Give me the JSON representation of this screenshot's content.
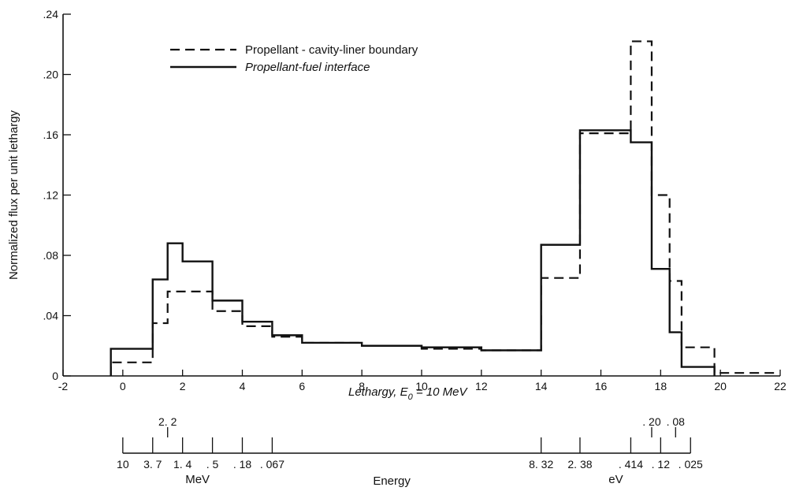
{
  "chart_data": {
    "type": "line",
    "title": "",
    "xlabel": "Lethargy, E",
    "xlabel_subscript": "0",
    "xlabel_suffix": " = 10 MeV",
    "ylabel": "Normalized flux per unit lethargy",
    "xlim": [
      -2,
      22
    ],
    "ylim": [
      0,
      0.24
    ],
    "x_ticks": [
      -2,
      0,
      2,
      4,
      6,
      8,
      10,
      12,
      14,
      16,
      18,
      20,
      22
    ],
    "x_tick_labels": [
      "-2",
      "0",
      "2",
      "4",
      "6",
      "8",
      "10",
      "12",
      "14",
      "16",
      "18",
      "20",
      "22"
    ],
    "y_ticks": [
      0,
      0.04,
      0.08,
      0.12,
      0.16,
      0.2,
      0.24
    ],
    "y_tick_labels": [
      "0",
      ".04",
      ".08",
      ".12",
      ".16",
      ".20",
      ".24"
    ],
    "grid": false,
    "legend": "top-left",
    "series": [
      {
        "name": "Propellant - cavity-liner boundary",
        "style": "dashed",
        "step": true,
        "x": [
          -0.4,
          1.0,
          1.5,
          2.0,
          3.0,
          4.0,
          5.0,
          6.0,
          7.0,
          8.0,
          9.0,
          10.0,
          11.0,
          12.0,
          14.0,
          15.3,
          17.0,
          17.7,
          18.3,
          18.7,
          19.8,
          21.8
        ],
        "y": [
          0.009,
          0.035,
          0.056,
          0.056,
          0.043,
          0.033,
          0.026,
          0.022,
          0.022,
          0.02,
          0.02,
          0.018,
          0.018,
          0.017,
          0.065,
          0.161,
          0.222,
          0.12,
          0.063,
          0.019,
          0.002,
          0.0
        ]
      },
      {
        "name": "Propellant-fuel interface",
        "style": "solid",
        "step": true,
        "x": [
          -0.4,
          1.0,
          1.5,
          2.0,
          3.0,
          4.0,
          5.0,
          6.0,
          7.0,
          8.0,
          9.0,
          10.0,
          11.0,
          12.0,
          14.0,
          15.3,
          17.0,
          17.7,
          18.3,
          18.7,
          19.8
        ],
        "y": [
          0.018,
          0.064,
          0.088,
          0.076,
          0.05,
          0.036,
          0.027,
          0.022,
          0.022,
          0.02,
          0.02,
          0.019,
          0.019,
          0.017,
          0.087,
          0.163,
          0.155,
          0.071,
          0.029,
          0.006,
          0.0
        ]
      }
    ],
    "energy_scale": {
      "title": "Energy",
      "mev_label": "MeV",
      "ev_label": "eV",
      "below_ticks": [
        {
          "lethargy": 0.0,
          "label": "10"
        },
        {
          "lethargy": 1.0,
          "label": "3. 7"
        },
        {
          "lethargy": 2.0,
          "label": "1. 4"
        },
        {
          "lethargy": 3.0,
          "label": ". 5"
        },
        {
          "lethargy": 4.0,
          "label": ". 18"
        },
        {
          "lethargy": 5.0,
          "label": ". 067"
        },
        {
          "lethargy": 14.0,
          "label": "8. 32"
        },
        {
          "lethargy": 15.3,
          "label": "2. 38"
        },
        {
          "lethargy": 17.0,
          "label": ". 414"
        },
        {
          "lethargy": 18.0,
          "label": ". 12"
        },
        {
          "lethargy": 19.0,
          "label": ". 025"
        }
      ],
      "above_ticks": [
        {
          "lethargy": 1.5,
          "label": "2. 2"
        },
        {
          "lethargy": 17.7,
          "label": ". 20"
        },
        {
          "lethargy": 18.5,
          "label": ". 08"
        }
      ],
      "minor_ticks": [
        1.5,
        17.7,
        18.5
      ]
    }
  }
}
